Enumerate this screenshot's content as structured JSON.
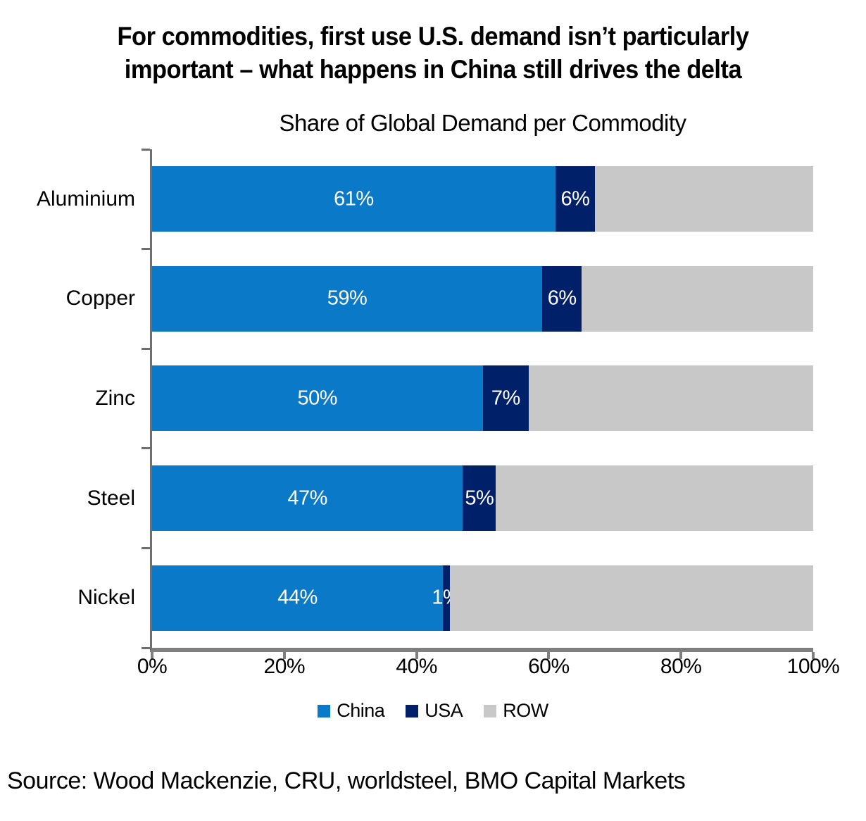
{
  "headline": {
    "line1": "For commodities, first use U.S. demand isn’t particularly",
    "line2": "important – what happens in China still drives the delta"
  },
  "chart_data": {
    "type": "bar",
    "orientation": "horizontal",
    "stacked": true,
    "title": "Share of Global Demand per Commodity",
    "categories": [
      "Aluminium",
      "Copper",
      "Zinc",
      "Steel",
      "Nickel"
    ],
    "series": [
      {
        "name": "China",
        "color": "#0a79c8",
        "values": [
          61,
          59,
          50,
          47,
          44
        ],
        "labels": [
          "61%",
          "59%",
          "50%",
          "47%",
          "44%"
        ],
        "show_labels": true
      },
      {
        "name": "USA",
        "color": "#002169",
        "values": [
          6,
          6,
          7,
          5,
          1
        ],
        "labels": [
          "6%",
          "6%",
          "7%",
          "5%",
          "1%"
        ],
        "show_labels": true
      },
      {
        "name": "ROW",
        "color": "#c8c8c8",
        "values": [
          33,
          35,
          43,
          48,
          55
        ],
        "labels": [],
        "show_labels": false
      }
    ],
    "xlim": [
      0,
      100
    ],
    "x_tick_labels": [
      "0%",
      "20%",
      "40%",
      "60%",
      "80%",
      "100%"
    ],
    "grid": false,
    "legend_position": "bottom",
    "legend": [
      {
        "label": "China",
        "color": "#0a79c8"
      },
      {
        "label": "USA",
        "color": "#002169"
      },
      {
        "label": "ROW",
        "color": "#c8c8c8"
      }
    ]
  },
  "source": "Source: Wood Mackenzie, CRU, worldsteel, BMO Capital Markets",
  "colors": {
    "china": "#0a79c8",
    "usa": "#002169",
    "row": "#c8c8c8",
    "y_axis": "#6e6e6e",
    "x_axis": "#7f7f7f",
    "text": "#000000",
    "bar_label_text": "#ffffff",
    "background": "#ffffff"
  }
}
